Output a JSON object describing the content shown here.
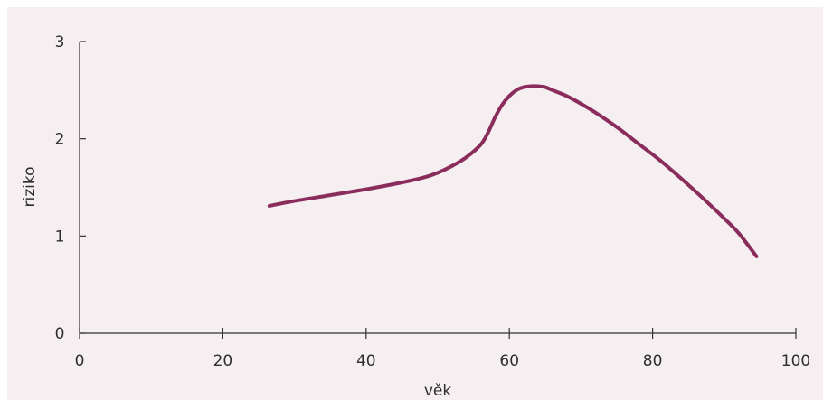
{
  "chart_data": {
    "type": "line",
    "xlabel": "věk",
    "ylabel": "riziko",
    "xlim": [
      0,
      100
    ],
    "ylim": [
      0,
      3
    ],
    "xticks": [
      0,
      20,
      40,
      60,
      80,
      100
    ],
    "yticks": [
      0,
      1,
      2,
      3
    ],
    "grid": false,
    "series": [
      {
        "color": "#8b2d5c",
        "x": [
          26.5,
          30,
          35,
          40,
          45,
          48,
          50,
          52,
          54,
          56,
          57,
          58,
          59,
          60,
          61,
          62,
          63,
          64,
          65,
          66,
          68,
          70,
          72,
          75,
          78,
          81,
          84,
          87,
          90,
          92,
          94.5
        ],
        "y": [
          1.31,
          1.36,
          1.42,
          1.48,
          1.55,
          1.6,
          1.65,
          1.72,
          1.81,
          1.94,
          2.06,
          2.22,
          2.35,
          2.44,
          2.5,
          2.53,
          2.54,
          2.54,
          2.53,
          2.5,
          2.44,
          2.36,
          2.27,
          2.12,
          1.95,
          1.78,
          1.59,
          1.39,
          1.18,
          1.03,
          0.79
        ]
      }
    ]
  }
}
